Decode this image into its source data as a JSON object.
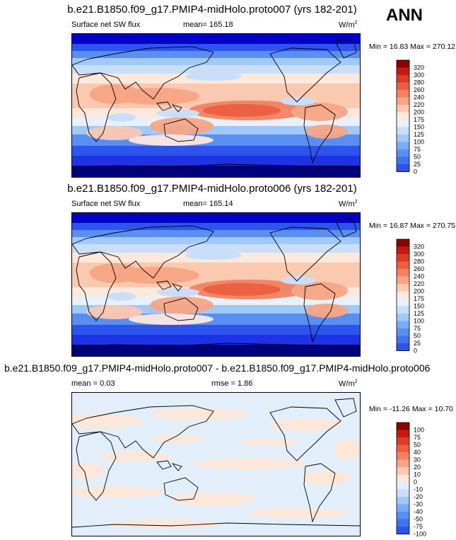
{
  "season": "ANN",
  "colors": {
    "abs_scale": [
      "#00007f",
      "#0000c8",
      "#1e32e6",
      "#2d55ee",
      "#4173f0",
      "#5a8ff2",
      "#78acf5",
      "#a0c8f8",
      "#c8def9",
      "#e8f0fb",
      "#fde8dc",
      "#fbc8b0",
      "#f7a584",
      "#f38260",
      "#ec5f40",
      "#dc3c23",
      "#c21a10",
      "#8c0000"
    ],
    "diff_scale": [
      "#00007f",
      "#0000c8",
      "#1e32e6",
      "#2d55ee",
      "#4173f0",
      "#5a8ff2",
      "#78acf5",
      "#a0c8f8",
      "#c8def9",
      "#e3eefb",
      "#fde7d8",
      "#fbc8b0",
      "#f7a584",
      "#f38260",
      "#ec5f40",
      "#dc3c23",
      "#c21a10",
      "#8c0000"
    ],
    "coast": "#000000"
  },
  "chart_data": [
    {
      "type": "heatmap",
      "title": "b.e21.B1850.f09_g17.PMIP4-midHolo.proto007 (yrs 182-201)",
      "variable": "Surface net SW flux",
      "mean_label": "mean=",
      "mean": "165.18",
      "units": "W/m",
      "units_exp": "2",
      "min_label": "Min =",
      "min": "16.83",
      "max_label": "Max =",
      "max": "270.12",
      "colorbar_levels": [
        "320",
        "300",
        "280",
        "260",
        "240",
        "220",
        "200",
        "175",
        "150",
        "125",
        "100",
        "75",
        "50",
        "25",
        "0"
      ]
    },
    {
      "type": "heatmap",
      "title": "b.e21.B1850.f09_g17.PMIP4-midHolo.proto006 (yrs 182-201)",
      "variable": "Surface net SW flux",
      "mean_label": "mean=",
      "mean": "165.14",
      "units": "W/m",
      "units_exp": "2",
      "min_label": "Min =",
      "min": "16.87",
      "max_label": "Max =",
      "max": "270.75",
      "colorbar_levels": [
        "320",
        "300",
        "280",
        "260",
        "240",
        "220",
        "200",
        "175",
        "150",
        "125",
        "100",
        "75",
        "50",
        "25",
        "0"
      ]
    },
    {
      "type": "heatmap",
      "title": "b.e21.B1850.f09_g17.PMIP4-midHolo.proto007 - b.e21.B1850.f09_g17.PMIP4-midHolo.proto006",
      "mean_label": "mean =",
      "mean": "0.03",
      "rmse_label": "rmse =",
      "rmse": "1.86",
      "units": "W/m",
      "units_exp": "2",
      "min_label": "Min =",
      "min": "-11.26",
      "max_label": "Max =",
      "max": "10.70",
      "colorbar_levels": [
        "100",
        "75",
        "50",
        "40",
        "30",
        "20",
        "10",
        "0",
        "-10",
        "-20",
        "-30",
        "-40",
        "-50",
        "-75",
        "-100"
      ]
    }
  ]
}
